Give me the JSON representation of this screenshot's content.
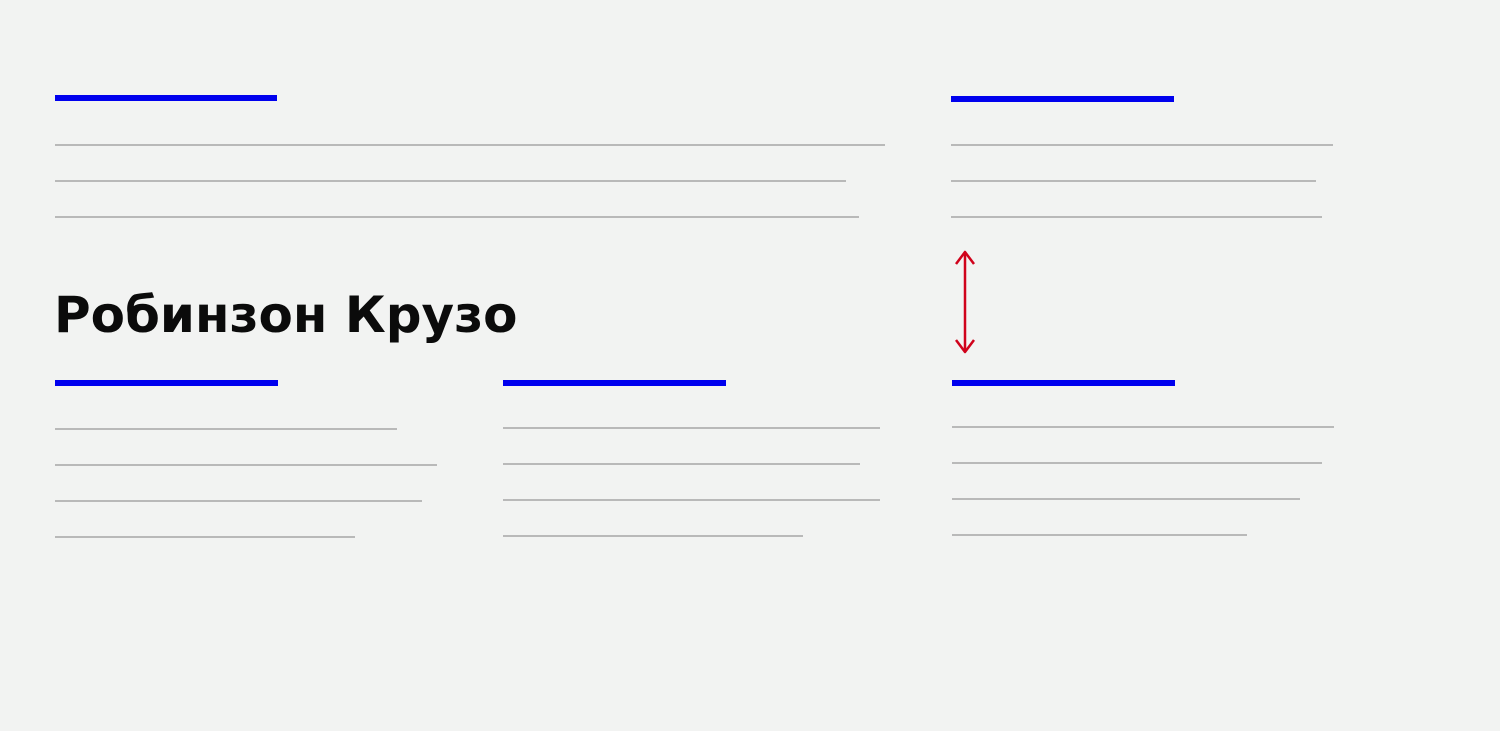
{
  "title": "Робинзон Крузо",
  "colors": {
    "background": "#f2f3f2",
    "heading_bar": "#0000ee",
    "text_line": "#b9b9b9",
    "title_text": "#0b0b0b",
    "spacing_arrow": "#d0021b"
  },
  "icons": {
    "spacing_arrow": "vertical-double-arrow-icon"
  }
}
